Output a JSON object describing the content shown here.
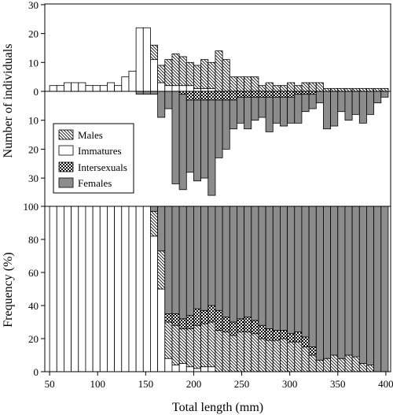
{
  "chart_data": [
    {
      "type": "bar",
      "subtype": "back-to-back stacked histogram",
      "ylabel": "Number of individuals",
      "y_tick_labels": [
        "30",
        "20",
        "10",
        "0",
        "10",
        "20",
        "30"
      ],
      "ylim_up": [
        0,
        30
      ],
      "ylim_down": [
        0,
        30
      ],
      "bin_width": 7.5,
      "bin_starts": [
        50,
        57.5,
        65,
        72.5,
        80,
        87.5,
        95,
        102.5,
        110,
        117.5,
        125,
        132.5,
        140,
        147.5,
        155,
        162.5,
        170,
        177.5,
        185,
        192.5,
        200,
        207.5,
        215,
        222.5,
        230,
        237.5,
        245,
        252.5,
        260,
        267.5,
        275,
        282.5,
        290,
        297.5,
        305,
        312.5,
        320,
        327.5,
        335,
        342.5,
        350,
        357.5,
        365,
        372.5,
        380,
        387.5,
        395
      ],
      "up_series": [
        {
          "name": "Immatures",
          "values": [
            2,
            2,
            3,
            3,
            3,
            2,
            2,
            2,
            3,
            2,
            5,
            7,
            22,
            22,
            11,
            3,
            2,
            2,
            2,
            2,
            1,
            1,
            1,
            0,
            0,
            0,
            0,
            0,
            0,
            0,
            0,
            0,
            0,
            0,
            0,
            0,
            0,
            0,
            0,
            0,
            0,
            0,
            0,
            0,
            0,
            0,
            0
          ]
        },
        {
          "name": "Males",
          "values": [
            0,
            0,
            0,
            0,
            0,
            0,
            0,
            0,
            0,
            0,
            0,
            0,
            0,
            0,
            5,
            6,
            9,
            11,
            10,
            8,
            8,
            10,
            9,
            14,
            11,
            5,
            5,
            5,
            5,
            2,
            3,
            2,
            2,
            3,
            2,
            3,
            3,
            3,
            1,
            1,
            1,
            1,
            1,
            1,
            1,
            1,
            1
          ]
        }
      ],
      "down_series": [
        {
          "name": "Intersexuals",
          "values": [
            0,
            0,
            0,
            0,
            0,
            0,
            0,
            0,
            0,
            0,
            0,
            0,
            0,
            0,
            0,
            0,
            0,
            0,
            1,
            3,
            3,
            3,
            3,
            3,
            3,
            3,
            2,
            2,
            2,
            2,
            2,
            2,
            2,
            2,
            1,
            1,
            1,
            0,
            0,
            0,
            0,
            0,
            0,
            0,
            0,
            0,
            0
          ]
        },
        {
          "name": "Females",
          "values": [
            0,
            0,
            0,
            0,
            0,
            0,
            0,
            0,
            0,
            0,
            0,
            0,
            1,
            1,
            1,
            9,
            6,
            32,
            33,
            25,
            28,
            27,
            33,
            20,
            17,
            10,
            9,
            11,
            8,
            7,
            12,
            9,
            10,
            9,
            10,
            6,
            5,
            4,
            13,
            12,
            7,
            10,
            8,
            11,
            8,
            4,
            2
          ]
        }
      ],
      "legend": [
        "Males",
        "Immatures",
        "Intersexuals",
        "Females"
      ],
      "legend_position": "lower-left"
    },
    {
      "type": "bar",
      "subtype": "stacked 100% histogram",
      "xlabel": "Total length (mm)",
      "ylabel": "Frequency (%)",
      "x_ticks": [
        50,
        100,
        150,
        200,
        250,
        300,
        350,
        400
      ],
      "y_ticks": [
        0,
        20,
        40,
        60,
        80,
        100
      ],
      "xlim": [
        45,
        405
      ],
      "ylim": [
        0,
        100
      ],
      "series": [
        {
          "name": "Immatures",
          "values": [
            100,
            100,
            100,
            100,
            100,
            100,
            100,
            100,
            100,
            100,
            100,
            100,
            100,
            100,
            82,
            50,
            8,
            4,
            5,
            3,
            2,
            3,
            3,
            0,
            0,
            0,
            0,
            0,
            0,
            0,
            0,
            0,
            0,
            0,
            0,
            0,
            0,
            0,
            0,
            0,
            0,
            0,
            0,
            0,
            0,
            0,
            0
          ]
        },
        {
          "name": "Males",
          "values": [
            0,
            0,
            0,
            0,
            0,
            0,
            0,
            0,
            0,
            0,
            0,
            0,
            0,
            0,
            15,
            23,
            22,
            24,
            21,
            23,
            26,
            26,
            27,
            25,
            24,
            22,
            24,
            24,
            23,
            20,
            19,
            19,
            20,
            18,
            18,
            15,
            10,
            7,
            8,
            10,
            8,
            10,
            9,
            5,
            4,
            0,
            0
          ]
        },
        {
          "name": "Intersexuals",
          "values": [
            0,
            0,
            0,
            0,
            0,
            0,
            0,
            0,
            0,
            0,
            0,
            0,
            0,
            0,
            0,
            0,
            5,
            7,
            6,
            8,
            10,
            8,
            10,
            12,
            9,
            8,
            8,
            9,
            8,
            8,
            7,
            6,
            5,
            5,
            6,
            6,
            5,
            0,
            0,
            0,
            0,
            0,
            0,
            0,
            0,
            0,
            0
          ]
        },
        {
          "name": "Females",
          "values": [
            0,
            0,
            0,
            0,
            0,
            0,
            0,
            0,
            0,
            0,
            0,
            0,
            0,
            0,
            3,
            27,
            65,
            65,
            68,
            66,
            62,
            63,
            60,
            63,
            67,
            70,
            68,
            67,
            69,
            72,
            74,
            75,
            75,
            77,
            76,
            79,
            85,
            93,
            92,
            90,
            92,
            90,
            91,
            95,
            96,
            100,
            100
          ]
        }
      ]
    }
  ],
  "colors": {
    "females": "#8c8c8c",
    "immatures": "#ffffff",
    "males_hatch": "#000000",
    "intersexual_fill": "#ffffff"
  }
}
